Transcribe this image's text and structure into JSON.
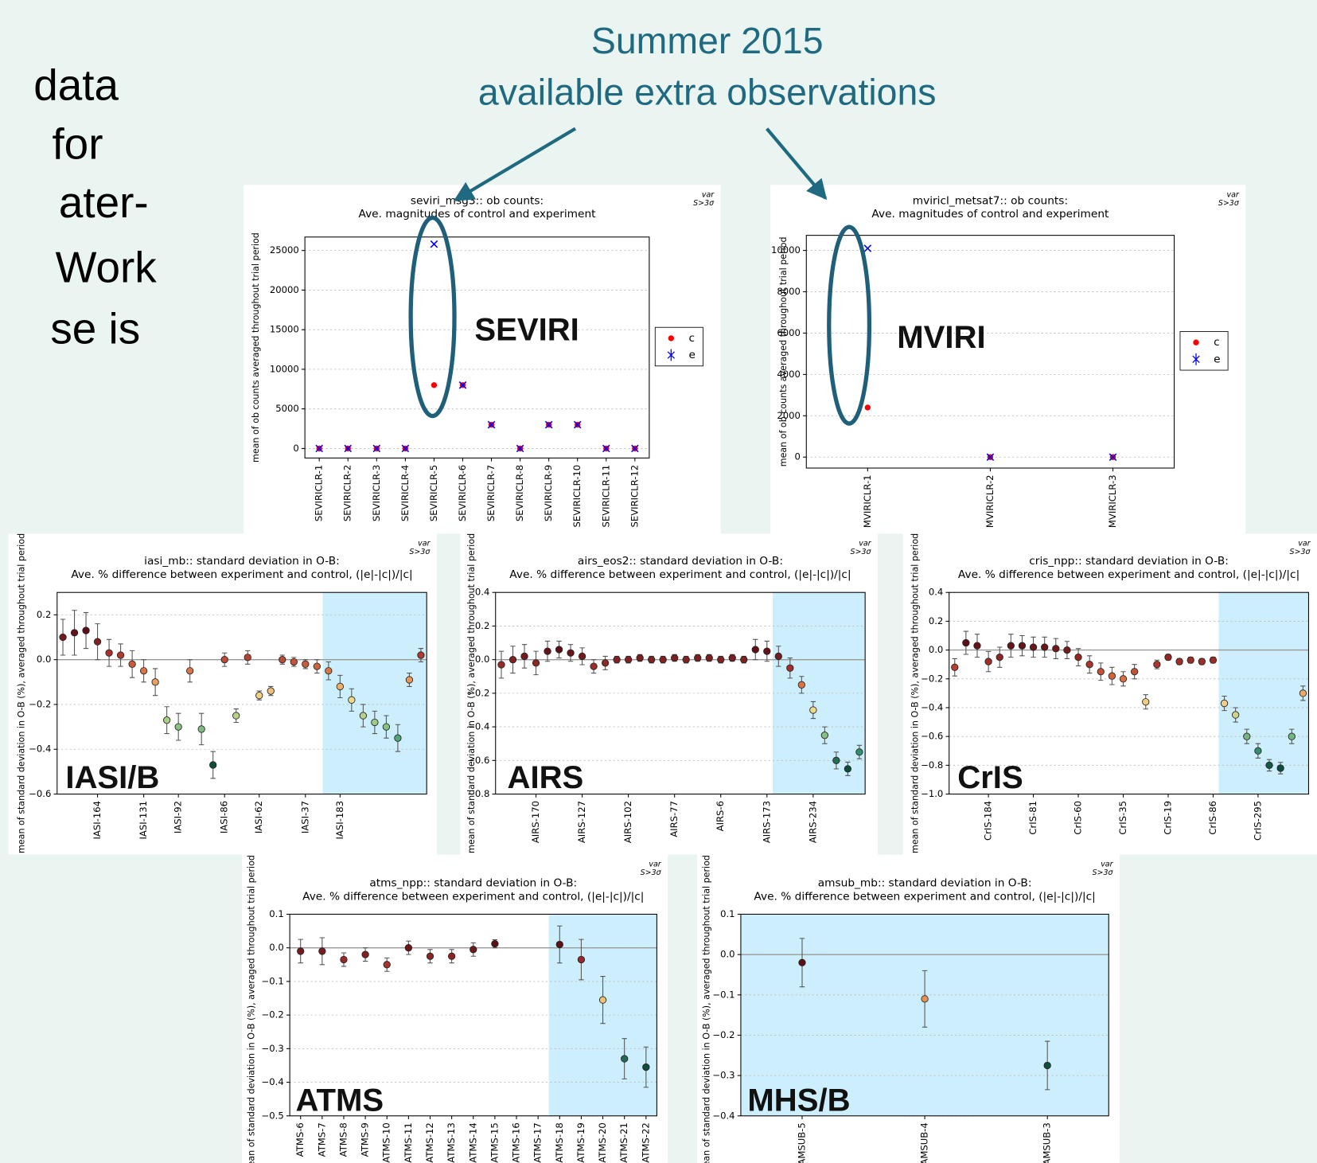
{
  "slide": {
    "heading": [
      "Summer 2015",
      "available extra observations"
    ],
    "side_text": [
      "data",
      "for",
      "ater-",
      "Work",
      "se is"
    ]
  },
  "chart_data": [
    {
      "type": "scatter",
      "title": "seviri_msg3:: ob counts:",
      "subtitle": "Ave. magnitudes of control and experiment",
      "note": [
        "var",
        "S>3σ"
      ],
      "ylabel": "mean of ob counts averaged throughout trial period",
      "label": "SEVIRI",
      "categories": [
        "SEVIRICLR-1",
        "SEVIRICLR-2",
        "SEVIRICLR-3",
        "SEVIRICLR-4",
        "SEVIRICLR-5",
        "SEVIRICLR-6",
        "SEVIRICLR-7",
        "SEVIRICLR-8",
        "SEVIRICLR-9",
        "SEVIRICLR-10",
        "SEVIRICLR-11",
        "SEVIRICLR-12"
      ],
      "series": [
        {
          "name": "c",
          "color": "#ff0000",
          "marker": "o",
          "values": [
            0,
            0,
            0,
            0,
            8000,
            8000,
            3000,
            0,
            3000,
            3000,
            0,
            0
          ]
        },
        {
          "name": "e",
          "color": "#0000ff",
          "marker": "x",
          "values": [
            0,
            0,
            0,
            0,
            25800,
            8000,
            3000,
            0,
            3000,
            3000,
            0,
            0
          ]
        }
      ],
      "ylim": [
        -1200,
        26700
      ],
      "yticks": [
        0,
        5000,
        10000,
        15000,
        20000,
        25000
      ],
      "grid": true,
      "legend": "right"
    },
    {
      "type": "scatter",
      "title": "mviricl_metsat7:: ob counts:",
      "subtitle": "Ave. magnitudes of control and experiment",
      "note": [
        "var",
        "S>3σ"
      ],
      "ylabel": "mean of ob counts averaged throughout trial period",
      "label": "MVIRI",
      "categories": [
        "MVIRICLR-1",
        "MVIRICLR-2",
        "MVIRICLR-3"
      ],
      "series": [
        {
          "name": "c",
          "color": "#ff0000",
          "marker": "o",
          "values": [
            2400,
            0,
            0
          ]
        },
        {
          "name": "e",
          "color": "#0000ff",
          "marker": "x",
          "values": [
            10100,
            0,
            0
          ]
        }
      ],
      "ylim": [
        -530,
        10730
      ],
      "yticks": [
        0,
        2000,
        4000,
        6000,
        8000,
        10000
      ],
      "grid": true,
      "legend": "right"
    },
    {
      "type": "errorbar",
      "title": "iasi_mb:: standard deviation in O-B:",
      "subtitle": "Ave. % difference between experiment and control, (|e|-|c|)/|c|",
      "note": [
        "var",
        "S>3σ"
      ],
      "ylabel": "mean of standard deviation in O-B (%), averaged throughout trial period",
      "label": "IASI/B",
      "categories": [
        null,
        null,
        null,
        "IASI-164",
        null,
        null,
        null,
        "IASI-131",
        null,
        null,
        "IASI-92",
        null,
        null,
        null,
        "IASI-86",
        null,
        null,
        "IASI-62",
        null,
        null,
        null,
        "IASI-37",
        null,
        null,
        "IASI-183",
        null,
        null,
        null,
        null,
        null,
        null,
        null
      ],
      "values": [
        0.1,
        0.12,
        0.13,
        0.08,
        0.03,
        0.02,
        -0.02,
        -0.05,
        -0.1,
        -0.27,
        -0.3,
        -0.05,
        -0.31,
        -0.47,
        0.0,
        -0.25,
        0.01,
        -0.16,
        -0.14,
        0.0,
        -0.01,
        -0.02,
        -0.03,
        -0.05,
        -0.12,
        -0.18,
        -0.25,
        -0.28,
        -0.3,
        -0.35,
        -0.09,
        0.02
      ],
      "errors": [
        0.08,
        0.1,
        0.08,
        0.08,
        0.06,
        0.05,
        0.06,
        0.05,
        0.06,
        0.06,
        0.06,
        0.05,
        0.07,
        0.06,
        0.03,
        0.03,
        0.03,
        0.02,
        0.02,
        0.02,
        0.02,
        0.02,
        0.03,
        0.04,
        0.05,
        0.05,
        0.05,
        0.05,
        0.05,
        0.06,
        0.03,
        0.03
      ],
      "shade": [
        23,
        31
      ],
      "zero_line": true,
      "colormap": [
        "#0f4d3c",
        "#3d9a7a",
        "#a9cf86",
        "#f2d98c",
        "#e8864a",
        "#a8322b",
        "#5c0f16"
      ],
      "ylim": [
        -0.6,
        0.3
      ],
      "yticks": [
        {
          "value": -0.6,
          "label": "−0.6"
        },
        {
          "value": -0.4,
          "label": "−0.4"
        },
        {
          "value": -0.2,
          "label": "−0.2"
        },
        {
          "value": 0,
          "label": "0.0"
        },
        0.2
      ],
      "grid": true
    },
    {
      "type": "errorbar",
      "title": "airs_eos2:: standard deviation in O-B:",
      "subtitle": "Ave. % difference between experiment and control, (|e|-|c|)/|c|",
      "note": [
        "var",
        "S>3σ"
      ],
      "ylabel": "mean of standard deviation in O-B (%), averaged throughout trial period",
      "label": "AIRS",
      "categories": [
        null,
        null,
        null,
        "AIRS-170",
        null,
        null,
        null,
        "AIRS-127",
        null,
        null,
        null,
        "AIRS-102",
        null,
        null,
        null,
        "AIRS-77",
        null,
        null,
        null,
        "AIRS-6",
        null,
        null,
        null,
        "AIRS-173",
        null,
        null,
        null,
        "AIRS-234",
        null,
        null,
        null,
        null
      ],
      "values": [
        -0.03,
        0.0,
        0.02,
        -0.02,
        0.05,
        0.06,
        0.04,
        0.02,
        -0.04,
        -0.02,
        0.0,
        0.0,
        0.01,
        0.0,
        0.0,
        0.01,
        0.0,
        0.01,
        0.01,
        0.0,
        0.01,
        0.0,
        0.06,
        0.05,
        0.02,
        -0.05,
        -0.15,
        -0.3,
        -0.45,
        -0.6,
        -0.65,
        -0.55
      ],
      "errors": [
        0.08,
        0.08,
        0.07,
        0.07,
        0.06,
        0.05,
        0.05,
        0.05,
        0.04,
        0.04,
        0.02,
        0.02,
        0.02,
        0.02,
        0.02,
        0.02,
        0.02,
        0.02,
        0.02,
        0.02,
        0.02,
        0.02,
        0.06,
        0.06,
        0.06,
        0.06,
        0.05,
        0.05,
        0.05,
        0.05,
        0.04,
        0.04
      ],
      "shade": [
        24,
        31
      ],
      "zero_line": true,
      "colormap": [
        "#0f4d3c",
        "#3d9a7a",
        "#a9cf86",
        "#f2d98c",
        "#e8864a",
        "#a8322b",
        "#5c0f16"
      ],
      "ylim": [
        -0.8,
        0.4
      ],
      "yticks": [
        {
          "value": -0.8,
          "label": "−0.8"
        },
        {
          "value": -0.6,
          "label": "−0.6"
        },
        {
          "value": -0.4,
          "label": "−0.4"
        },
        {
          "value": -0.2,
          "label": "−0.2"
        },
        {
          "value": 0,
          "label": "0.0"
        },
        0.2,
        0.4
      ],
      "grid": true
    },
    {
      "type": "errorbar",
      "title": "cris_npp:: standard deviation in O-B:",
      "subtitle": "Ave. % difference between experiment and control, (|e|-|c|)/|c|",
      "note": [
        "var",
        "S>3σ"
      ],
      "ylabel": "mean of standard deviation in O-B (%), averaged throughout trial period",
      "label": "CrIS",
      "categories": [
        null,
        null,
        null,
        "CrIS-184",
        null,
        null,
        null,
        "CrIS-81",
        null,
        null,
        null,
        "CrIS-60",
        null,
        null,
        null,
        "CrIS-35",
        null,
        null,
        null,
        "CrIS-19",
        null,
        null,
        null,
        "CrIS-86",
        null,
        null,
        null,
        "CrIS-295",
        null,
        null,
        null,
        null
      ],
      "values": [
        -0.12,
        0.05,
        0.03,
        -0.08,
        -0.05,
        0.03,
        0.03,
        0.02,
        0.02,
        0.01,
        0.0,
        -0.05,
        -0.1,
        -0.15,
        -0.18,
        -0.2,
        -0.15,
        -0.36,
        -0.1,
        -0.05,
        -0.08,
        -0.07,
        -0.08,
        -0.07,
        -0.37,
        -0.45,
        -0.6,
        -0.7,
        -0.8,
        -0.82,
        -0.6,
        -0.3
      ],
      "errors": [
        0.06,
        0.08,
        0.08,
        0.07,
        0.07,
        0.08,
        0.07,
        0.07,
        0.07,
        0.07,
        0.06,
        0.06,
        0.06,
        0.06,
        0.06,
        0.05,
        0.05,
        0.05,
        0.03,
        0.02,
        0.02,
        0.02,
        0.02,
        0.02,
        0.05,
        0.05,
        0.05,
        0.05,
        0.04,
        0.04,
        0.05,
        0.05
      ],
      "shade": [
        24,
        31
      ],
      "zero_line": true,
      "colormap": [
        "#0f4d3c",
        "#3d9a7a",
        "#a9cf86",
        "#f2d98c",
        "#e8864a",
        "#a8322b",
        "#5c0f16"
      ],
      "ylim": [
        -1.0,
        0.4
      ],
      "yticks": [
        {
          "value": -1.0,
          "label": "−1.0"
        },
        {
          "value": -0.8,
          "label": "−0.8"
        },
        {
          "value": -0.6,
          "label": "−0.6"
        },
        {
          "value": -0.4,
          "label": "−0.4"
        },
        {
          "value": -0.2,
          "label": "−0.2"
        },
        {
          "value": 0,
          "label": "0.0"
        },
        0.2,
        0.4
      ],
      "grid": true
    },
    {
      "type": "errorbar",
      "title": "atms_npp:: standard deviation in O-B:",
      "subtitle": "Ave. % difference between experiment and control, (|e|-|c|)/|c|",
      "note": [
        "var",
        "S>3σ"
      ],
      "ylabel": "mean of standard deviation in O-B (%), averaged throughout trial period",
      "label": "ATMS",
      "categories": [
        "ATMS-6",
        "ATMS-7",
        "ATMS-8",
        "ATMS-9",
        "ATMS-10",
        "ATMS-11",
        "ATMS-12",
        "ATMS-13",
        "ATMS-14",
        "ATMS-15",
        "ATMS-16",
        "ATMS-17",
        "ATMS-18",
        "ATMS-19",
        "ATMS-20",
        "ATMS-21",
        "ATMS-22"
      ],
      "values": [
        -0.01,
        -0.01,
        -0.035,
        -0.02,
        -0.05,
        0.0,
        -0.025,
        -0.025,
        -0.005,
        0.012,
        null,
        null,
        0.01,
        -0.035,
        -0.155,
        -0.33,
        -0.355
      ],
      "errors": [
        0.035,
        0.04,
        0.02,
        0.02,
        0.02,
        0.02,
        0.02,
        0.02,
        0.02,
        0.012,
        null,
        null,
        0.055,
        0.06,
        0.07,
        0.06,
        0.06
      ],
      "shade": [
        12,
        16
      ],
      "zero_line": true,
      "colormap": [
        "#0f4d3c",
        "#3d9a7a",
        "#a9cf86",
        "#f2d98c",
        "#e8864a",
        "#a8322b",
        "#5c0f16"
      ],
      "ylim": [
        -0.5,
        0.1
      ],
      "yticks": [
        {
          "value": -0.5,
          "label": "−0.5"
        },
        {
          "value": -0.4,
          "label": "−0.4"
        },
        {
          "value": -0.3,
          "label": "−0.3"
        },
        {
          "value": -0.2,
          "label": "−0.2"
        },
        {
          "value": -0.1,
          "label": "−0.1"
        },
        {
          "value": 0,
          "label": "0.0"
        },
        0.1
      ],
      "grid": true
    },
    {
      "type": "errorbar",
      "title": "amsub_mb:: standard deviation in O-B:",
      "subtitle": "Ave. % difference between experiment and control, (|e|-|c|)/|c|",
      "note": [
        "var",
        "S>3σ"
      ],
      "ylabel": "mean of standard deviation in O-B (%), averaged throughout trial period",
      "label": "MHS/B",
      "categories": [
        "AMSUB-5",
        "AMSUB-4",
        "AMSUB-3"
      ],
      "values": [
        -0.02,
        -0.11,
        -0.275
      ],
      "errors": [
        0.06,
        0.07,
        0.06
      ],
      "shade": [
        0,
        2
      ],
      "zero_line": true,
      "colormap": [
        "#0f4d3c",
        "#3d9a7a",
        "#a9cf86",
        "#f2d98c",
        "#e8864a",
        "#a8322b",
        "#5c0f16"
      ],
      "ylim": [
        -0.4,
        0.1
      ],
      "yticks": [
        {
          "value": -0.4,
          "label": "−0.4"
        },
        {
          "value": -0.3,
          "label": "−0.3"
        },
        {
          "value": -0.2,
          "label": "−0.2"
        },
        {
          "value": -0.1,
          "label": "−0.1"
        },
        {
          "value": 0,
          "label": "0.0"
        },
        0.1
      ],
      "grid": true
    }
  ]
}
